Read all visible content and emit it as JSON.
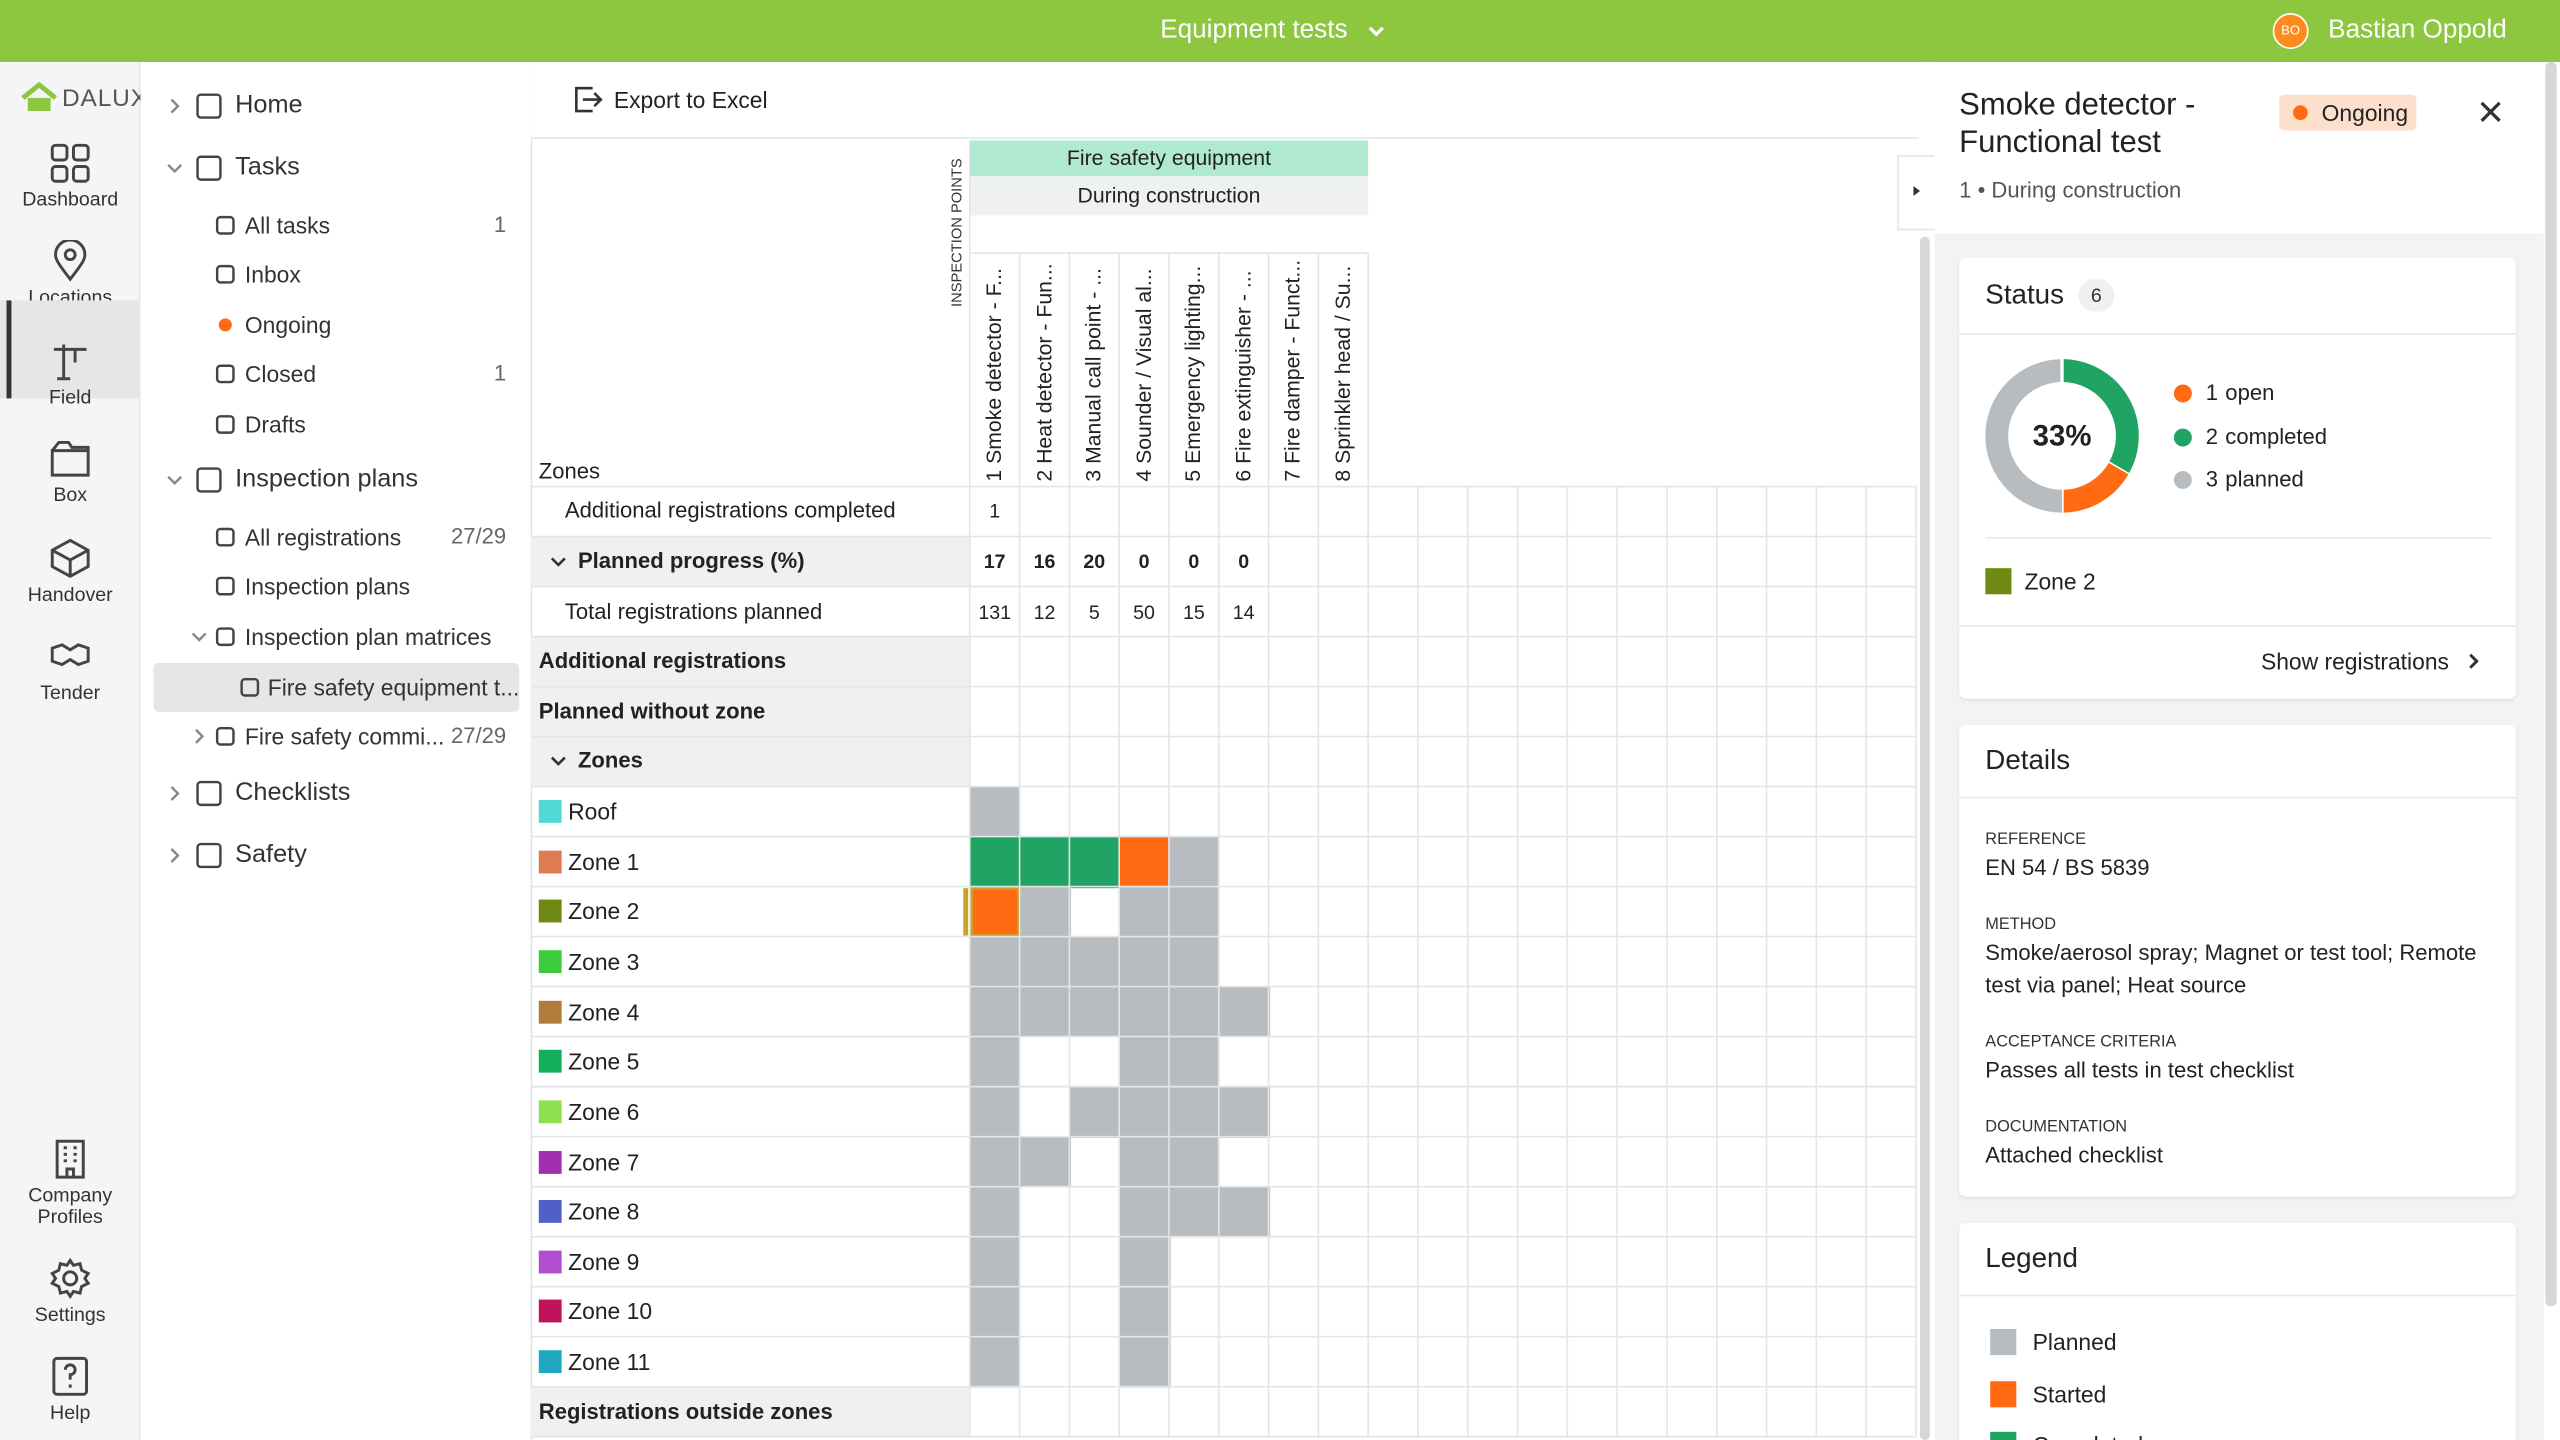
{
  "topbar": {
    "project": "Equipment tests",
    "avatar": "BO",
    "user": "Bastian Oppold"
  },
  "rail": {
    "logo": "DALUX",
    "items": [
      "Dashboard",
      "Locations",
      "Field",
      "Box",
      "Handover",
      "Tender"
    ],
    "bottom": [
      "Company Profiles",
      "Settings",
      "Help"
    ]
  },
  "nav": [
    {
      "label": "Home"
    },
    {
      "label": "Tasks"
    },
    {
      "label": "All tasks",
      "count": 1
    },
    {
      "label": "Inbox"
    },
    {
      "label": "Ongoing"
    },
    {
      "label": "Closed",
      "count": 1
    },
    {
      "label": "Drafts"
    },
    {
      "label": "Inspection plans"
    },
    {
      "label": "All registrations",
      "count": "27/29"
    },
    {
      "label": "Inspection plans"
    },
    {
      "label": "Inspection plan matrices"
    },
    {
      "label": "Fire safety equipment t..."
    },
    {
      "label": "Fire safety commi...",
      "count": "27/29"
    },
    {
      "label": "Checklists"
    },
    {
      "label": "Safety"
    }
  ],
  "matrix": {
    "toolbar": "Export to Excel",
    "group": "Fire safety equipment",
    "phase": "During construction",
    "points_label": "INSPECTION POINTS",
    "zones_label": "Zones",
    "columns": [
      "1 Smoke detector - F...",
      "2 Heat detector - Fun...",
      "3 Manual call point - ...",
      "4 Sounder / Visual al...",
      "5 Emergency lighting...",
      "6 Fire extinguisher - ...",
      "7 Fire damper - Funct...",
      "8 Sprinkler head / Su..."
    ],
    "summary_rows": [
      {
        "label": "Additional registrations completed",
        "values": [
          1
        ]
      },
      {
        "label": "Planned progress (%)",
        "values": [
          17,
          16,
          20,
          0,
          0,
          0
        ]
      },
      {
        "label": "Total registrations planned",
        "values": [
          131,
          12,
          5,
          50,
          15,
          14
        ]
      }
    ],
    "sections": [
      "Additional registrations",
      "Planned without zone",
      "Zones"
    ],
    "zones": [
      {
        "name": "Roof",
        "color": "#4fd8d6",
        "cells": [
          0
        ]
      },
      {
        "name": "Zone 1",
        "color": "#e07b53",
        "cells": [
          2,
          2,
          2,
          1,
          0
        ]
      },
      {
        "name": "Zone 2",
        "color": "#6f8a13",
        "cells": [
          1,
          0,
          null,
          0,
          0
        ]
      },
      {
        "name": "Zone 3",
        "color": "#3dcc3d",
        "cells": [
          0,
          0,
          0,
          0,
          0
        ]
      },
      {
        "name": "Zone 4",
        "color": "#b07d3a",
        "cells": [
          0,
          0,
          0,
          0,
          0,
          0
        ]
      },
      {
        "name": "Zone 5",
        "color": "#12b05c",
        "cells": [
          0,
          null,
          null,
          0,
          0
        ]
      },
      {
        "name": "Zone 6",
        "color": "#8ee04e",
        "cells": [
          0,
          null,
          0,
          0,
          0,
          0
        ]
      },
      {
        "name": "Zone 7",
        "color": "#a030b0",
        "cells": [
          0,
          0,
          null,
          0,
          0
        ]
      },
      {
        "name": "Zone 8",
        "color": "#5060c8",
        "cells": [
          0,
          null,
          null,
          0,
          0,
          0
        ]
      },
      {
        "name": "Zone 9",
        "color": "#b050d0",
        "cells": [
          0,
          null,
          null,
          0
        ]
      },
      {
        "name": "Zone 10",
        "color": "#c0145a",
        "cells": [
          0,
          null,
          null,
          0
        ]
      },
      {
        "name": "Zone 11",
        "color": "#20a8c0",
        "cells": [
          0,
          null,
          null,
          0
        ]
      }
    ],
    "footer": "Registrations outside zones"
  },
  "panel": {
    "title": "Smoke detector - Functional test",
    "badge": "Ongoing",
    "subtitle": "1 • During construction",
    "status": {
      "title": "Status",
      "total": 6,
      "percent": "33%",
      "items": [
        {
          "count": 1,
          "label": "open",
          "color": "#ff6a13"
        },
        {
          "count": 2,
          "label": "completed",
          "color": "#1fa463"
        },
        {
          "count": 3,
          "label": "planned",
          "color": "#b7bcc1"
        }
      ],
      "zone": "Zone 2",
      "zone_color": "#6f8a13",
      "link": "Show registrations"
    },
    "details": {
      "title": "Details",
      "fields": [
        {
          "label": "REFERENCE",
          "value": "EN 54 / BS 5839"
        },
        {
          "label": "METHOD",
          "value": "Smoke/aerosol spray; Magnet or test tool; Remote test via panel; Heat source"
        },
        {
          "label": "ACCEPTANCE CRITERIA",
          "value": "Passes all tests in test checklist"
        },
        {
          "label": "DOCUMENTATION",
          "value": "Attached checklist"
        }
      ]
    },
    "legend": {
      "title": "Legend",
      "items": [
        {
          "label": "Planned",
          "color": "#b7bcc1"
        },
        {
          "label": "Started",
          "color": "#ff6a13"
        },
        {
          "label": "Completed",
          "color": "#1fa463"
        }
      ]
    }
  }
}
